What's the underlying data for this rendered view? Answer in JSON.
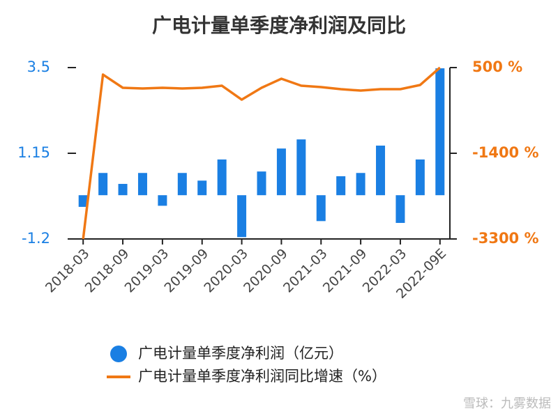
{
  "chart_data": {
    "type": "bar-line",
    "title": "广电计量单季度净利润及同比",
    "categories": [
      "2018-03",
      null,
      "2018-09",
      null,
      "2019-03",
      null,
      "2019-09",
      null,
      "2020-03",
      null,
      "2020-09",
      null,
      "2021-03",
      null,
      "2021-09",
      null,
      "2022-03",
      null,
      "2022-09E"
    ],
    "series": [
      {
        "name": "广电计量单季度净利润（亿元）",
        "type": "bar",
        "color": "#1a7fe3",
        "values": [
          -0.32,
          0.61,
          0.31,
          0.61,
          -0.29,
          0.61,
          0.4,
          0.98,
          -1.15,
          0.65,
          1.28,
          1.53,
          -0.71,
          0.52,
          0.61,
          1.36,
          -0.76,
          0.98,
          3.48
        ]
      },
      {
        "name": "广电计量单季度净利润同比增速（%）",
        "type": "line",
        "axis": "y2",
        "color": "#f07814",
        "values": [
          -3300,
          345,
          52,
          37,
          52,
          37,
          52,
          98,
          -211,
          52,
          253,
          98,
          67,
          21,
          -10,
          21,
          21,
          114,
          500
        ]
      }
    ],
    "ylim": [
      -1.2,
      3.5
    ],
    "yticks": [
      -1.2,
      1.15,
      3.5
    ],
    "y2lim": [
      -3300,
      500
    ],
    "y2ticks": [
      {
        "value": -3300,
        "label": "-3300 %"
      },
      {
        "value": -1400,
        "label": "-1400 %"
      },
      {
        "value": 500,
        "label": "500 %"
      }
    ],
    "left_axis_color": "#1a7fe3",
    "right_axis_color": "#f07814",
    "watermark": "雪球：九雾数据"
  }
}
